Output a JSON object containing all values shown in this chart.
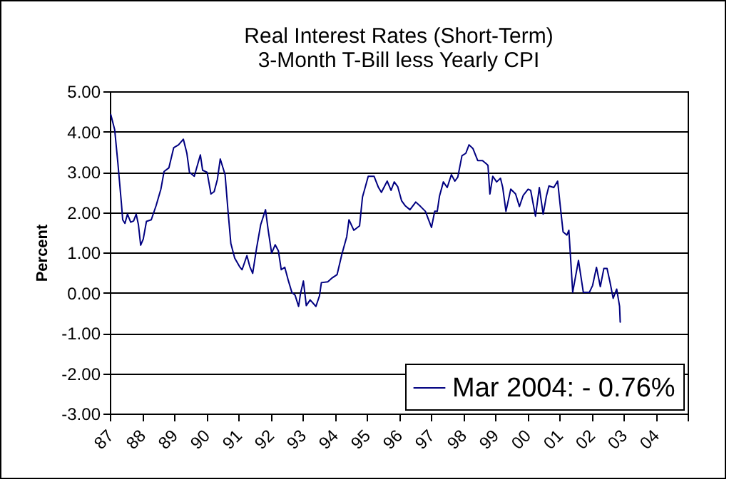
{
  "chart_data": {
    "type": "line",
    "title": "Real Interest Rates (Short-Term)",
    "subtitle": "3-Month T-Bill less Yearly CPI",
    "ylabel": "Percent",
    "xlim": [
      1987,
      2005
    ],
    "xticks": [
      {
        "value": 1987,
        "label": "87"
      },
      {
        "value": 1988,
        "label": "88"
      },
      {
        "value": 1989,
        "label": "89"
      },
      {
        "value": 1990,
        "label": "90"
      },
      {
        "value": 1991,
        "label": "91"
      },
      {
        "value": 1992,
        "label": "92"
      },
      {
        "value": 1993,
        "label": "93"
      },
      {
        "value": 1994,
        "label": "94"
      },
      {
        "value": 1995,
        "label": "95"
      },
      {
        "value": 1996,
        "label": "96"
      },
      {
        "value": 1997,
        "label": "97"
      },
      {
        "value": 1998,
        "label": "98"
      },
      {
        "value": 1999,
        "label": "99"
      },
      {
        "value": 2000,
        "label": "00"
      },
      {
        "value": 2001,
        "label": "01"
      },
      {
        "value": 2002,
        "label": "02"
      },
      {
        "value": 2003,
        "label": "03"
      },
      {
        "value": 2004,
        "label": "04"
      },
      {
        "value": 2005,
        "label": null
      }
    ],
    "ylim": [
      -3,
      5
    ],
    "yticks": [
      {
        "value": -3,
        "label": "-3.00"
      },
      {
        "value": -2,
        "label": "-2.00"
      },
      {
        "value": -1,
        "label": "-1.00"
      },
      {
        "value": 0,
        "label": "0.00"
      },
      {
        "value": 1,
        "label": "1.00"
      },
      {
        "value": 2,
        "label": "2.00"
      },
      {
        "value": 3,
        "label": "3.00"
      },
      {
        "value": 4,
        "label": "4.00"
      },
      {
        "value": 5,
        "label": "5.00"
      }
    ],
    "grid": "y",
    "legend": "bottom right",
    "marker": "none",
    "line_style": "solid",
    "series": [
      {
        "name": "Mar 2004: - 0.76%",
        "color": "#000080",
        "x": [
          1987.03,
          1987.15,
          1987.25,
          1987.36,
          1987.4,
          1987.47,
          1987.55,
          1987.65,
          1987.74,
          1987.82,
          1987.89,
          1987.96,
          1988.04,
          1988.14,
          1988.29,
          1988.44,
          1988.59,
          1988.69,
          1988.84,
          1988.99,
          1989.14,
          1989.29,
          1989.4,
          1989.48,
          1989.63,
          1989.82,
          1989.89,
          1990.03,
          1990.15,
          1990.25,
          1990.35,
          1990.44,
          1990.59,
          1990.68,
          1990.77,
          1990.89,
          1991.04,
          1991.12,
          1991.27,
          1991.36,
          1991.45,
          1991.57,
          1991.7,
          1991.85,
          1991.93,
          1992.04,
          1992.15,
          1992.25,
          1992.34,
          1992.45,
          1992.55,
          1992.67,
          1992.77,
          1992.88,
          1992.94,
          1993.03,
          1993.12,
          1993.24,
          1993.42,
          1993.53,
          1993.59,
          1993.79,
          1993.93,
          1994.08,
          1994.23,
          1994.38,
          1994.45,
          1994.6,
          1994.78,
          1994.87,
          1995.05,
          1995.23,
          1995.37,
          1995.46,
          1995.64,
          1995.76,
          1995.86,
          1995.97,
          1996.09,
          1996.2,
          1996.35,
          1996.53,
          1996.68,
          1996.83,
          1997.02,
          1997.12,
          1997.2,
          1997.27,
          1997.39,
          1997.51,
          1997.64,
          1997.75,
          1997.84,
          1997.97,
          1998.09,
          1998.19,
          1998.31,
          1998.46,
          1998.61,
          1998.73,
          1998.78,
          1998.84,
          1998.93,
          1999.05,
          1999.17,
          1999.24,
          1999.34,
          1999.49,
          1999.64,
          1999.76,
          1999.88,
          2000.03,
          2000.11,
          2000.26,
          2000.38,
          2000.5,
          2000.6,
          2000.68,
          2000.83,
          2000.95,
          2001.05,
          2001.12,
          2001.24,
          2001.3,
          2001.42,
          2001.51,
          2001.6,
          2001.75,
          2001.94,
          2002.04,
          2002.16,
          2002.28,
          2002.39,
          2002.49,
          2002.58,
          2002.68,
          2002.79,
          2002.88,
          2002.9
        ],
        "values": [
          4.42,
          4.05,
          3.22,
          2.22,
          1.81,
          1.72,
          1.95,
          1.75,
          1.78,
          1.95,
          1.69,
          1.18,
          1.33,
          1.77,
          1.81,
          2.16,
          2.57,
          3.01,
          3.1,
          3.6,
          3.67,
          3.81,
          3.46,
          2.99,
          2.89,
          3.42,
          3.04,
          2.99,
          2.45,
          2.51,
          2.81,
          3.32,
          2.93,
          2.04,
          1.22,
          0.86,
          0.65,
          0.57,
          0.92,
          0.65,
          0.48,
          1.1,
          1.69,
          2.06,
          1.57,
          0.98,
          1.19,
          1.04,
          0.57,
          0.63,
          0.33,
          0.01,
          -0.06,
          -0.34,
          -0.02,
          0.29,
          -0.32,
          -0.18,
          -0.34,
          -0.08,
          0.25,
          0.27,
          0.37,
          0.45,
          0.96,
          1.39,
          1.81,
          1.55,
          1.66,
          2.37,
          2.89,
          2.89,
          2.61,
          2.49,
          2.77,
          2.54,
          2.75,
          2.63,
          2.28,
          2.16,
          2.06,
          2.25,
          2.14,
          2.02,
          1.62,
          2.02,
          2.02,
          2.4,
          2.75,
          2.61,
          2.93,
          2.77,
          2.87,
          3.4,
          3.46,
          3.67,
          3.58,
          3.28,
          3.28,
          3.2,
          3.16,
          2.45,
          2.89,
          2.75,
          2.84,
          2.61,
          2.02,
          2.57,
          2.45,
          2.14,
          2.42,
          2.57,
          2.54,
          1.9,
          2.61,
          1.95,
          2.4,
          2.65,
          2.61,
          2.77,
          2.02,
          1.51,
          1.43,
          1.55,
          0.01,
          0.41,
          0.8,
          0.01,
          0.01,
          0.18,
          0.63,
          0.15,
          0.6,
          0.6,
          0.27,
          -0.14,
          0.09,
          -0.34,
          -0.73
        ]
      }
    ]
  }
}
